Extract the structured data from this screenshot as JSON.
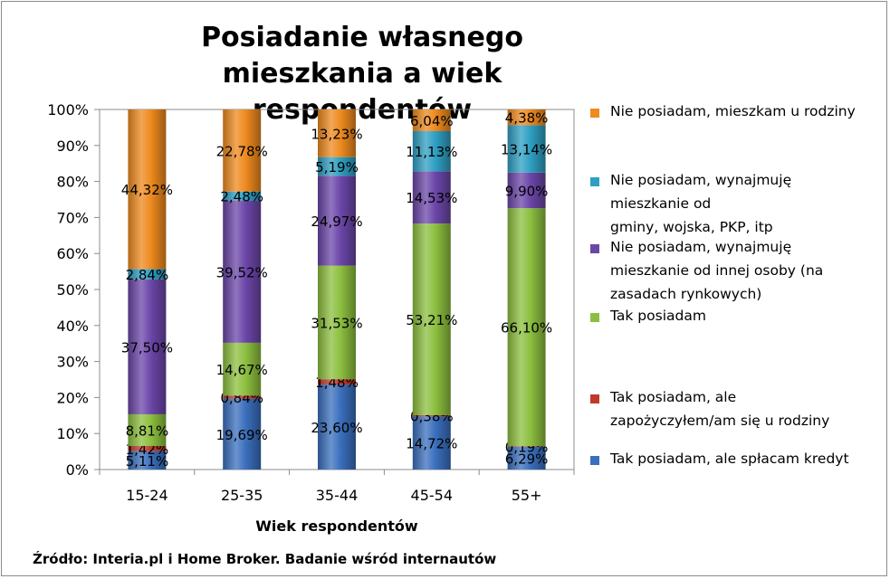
{
  "chart_data": {
    "type": "bar",
    "stacked": true,
    "title": "Posiadanie własnego mieszkania a wiek respondentów",
    "xlabel": "Wiek respondentów",
    "ylabel": "",
    "ylim": [
      0,
      100
    ],
    "yticks": [
      "0%",
      "10%",
      "20%",
      "30%",
      "40%",
      "50%",
      "60%",
      "70%",
      "80%",
      "90%",
      "100%"
    ],
    "categories": [
      "15-24",
      "25-35",
      "35-44",
      "45-54",
      "55+"
    ],
    "legend_position": "right",
    "series": [
      {
        "name": "Tak posiadam, ale spłacam kredyt",
        "color": "#3a6fbd",
        "values": [
          5.11,
          19.69,
          23.6,
          14.72,
          6.29
        ],
        "labels": [
          "5,11%",
          "19,69%",
          "23,60%",
          "14,72%",
          "6,29%"
        ]
      },
      {
        "name": "Tak posiadam, ale zapożyczyłem/am się u rodziny",
        "color": "#c0392b",
        "values": [
          1.42,
          0.84,
          1.48,
          0.38,
          0.19
        ],
        "labels": [
          "1,42%",
          "0,84%",
          "1,48%",
          "0,38%",
          "0,19%"
        ]
      },
      {
        "name": "Tak posiadam",
        "color": "#8cbf3f",
        "values": [
          8.81,
          14.67,
          31.53,
          53.21,
          66.1
        ],
        "labels": [
          "8,81%",
          "14,67%",
          "31,53%",
          "53,21%",
          "66,10%"
        ]
      },
      {
        "name": "Nie posiadam, wynajmuję mieszkanie od innej osoby (na zasadach rynkowych)",
        "color": "#6b46a8",
        "values": [
          37.5,
          39.52,
          24.97,
          14.53,
          9.9
        ],
        "labels": [
          "37,50%",
          "39,52%",
          "24,97%",
          "14,53%",
          "9,90%"
        ]
      },
      {
        "name": "Nie posiadam, wynajmuję mieszkanie od gminy, wojska, PKP, itp",
        "color": "#2e9fc2",
        "values": [
          2.84,
          2.48,
          5.19,
          11.13,
          13.14
        ],
        "labels": [
          "2,84%",
          "2,48%",
          "5,19%",
          "11,13%",
          "13,14%"
        ]
      },
      {
        "name": "Nie posiadam, mieszkam u rodziny",
        "color": "#ee8a1f",
        "values": [
          44.32,
          22.78,
          13.23,
          6.04,
          4.38
        ],
        "labels": [
          "44,32%",
          "22,78%",
          "13,23%",
          "6,04%",
          "4,38%"
        ]
      }
    ]
  },
  "legend": [
    {
      "lines": [
        "Nie posiadam, mieszkam u rodziny"
      ],
      "color": "#ee8a1f"
    },
    {
      "lines": [
        "Nie posiadam, wynajmuję",
        "mieszkanie od",
        "gminy, wojska, PKP, itp"
      ],
      "color": "#2e9fc2"
    },
    {
      "lines": [
        "Nie posiadam, wynajmuję",
        "mieszkanie od innej osoby (na",
        "zasadach rynkowych)"
      ],
      "color": "#6b46a8"
    },
    {
      "lines": [
        "Tak posiadam"
      ],
      "color": "#8cbf3f"
    },
    {
      "lines": [
        "Tak posiadam, ale",
        "zapożyczyłem/am się u rodziny"
      ],
      "color": "#c0392b"
    },
    {
      "lines": [
        "Tak posiadam, ale spłacam kredyt"
      ],
      "color": "#3a6fbd"
    }
  ],
  "source": "Źródło: Interia.pl i Home Broker. Badanie wśród internautów"
}
